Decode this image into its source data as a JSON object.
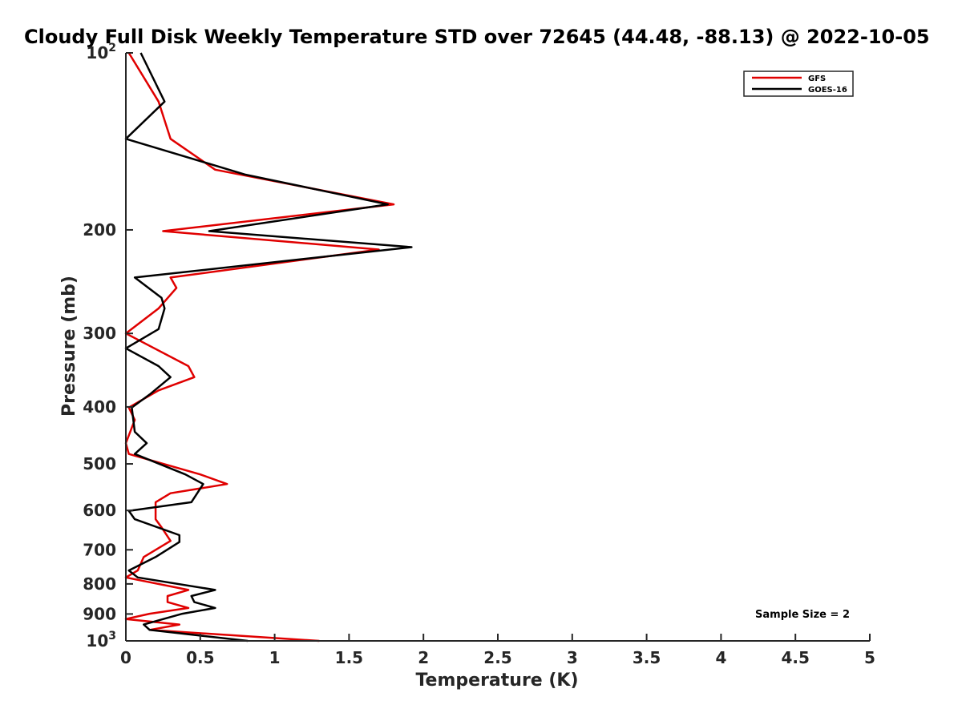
{
  "chart_data": {
    "type": "line",
    "title": "Cloudy Full Disk Weekly Temperature STD over 72645 (44.48, -88.13) @ 2022-10-05",
    "xlabel": "Temperature (K)",
    "ylabel": "Pressure (mb)",
    "xlim": [
      0,
      5
    ],
    "ylim": [
      100,
      1000
    ],
    "y_scale": "log",
    "y_reversed": true,
    "x_ticks": [
      "0",
      "0.5",
      "1",
      "1.5",
      "2",
      "2.5",
      "3",
      "3.5",
      "4",
      "4.5",
      "5"
    ],
    "y_ticks": [
      {
        "value": 100,
        "base": "10",
        "exp": "2"
      },
      {
        "value": 200,
        "label": "200"
      },
      {
        "value": 300,
        "label": "300"
      },
      {
        "value": 400,
        "label": "400"
      },
      {
        "value": 500,
        "label": "500"
      },
      {
        "value": 600,
        "label": "600"
      },
      {
        "value": 700,
        "label": "700"
      },
      {
        "value": 800,
        "label": "800"
      },
      {
        "value": 900,
        "label": "900"
      },
      {
        "value": 1000,
        "base": "10",
        "exp": "3"
      }
    ],
    "grid": false,
    "legend_position": "top-right",
    "annotation": "Sample Size = 2",
    "series": [
      {
        "name": "GFS",
        "color": "#e00000",
        "points": [
          [
            0.02,
            100
          ],
          [
            0.22,
            121
          ],
          [
            0.3,
            140
          ],
          [
            0.6,
            158
          ],
          [
            1.8,
            181
          ],
          [
            0.25,
            201
          ],
          [
            1.7,
            216
          ],
          [
            0.3,
            241
          ],
          [
            0.34,
            251
          ],
          [
            0.22,
            272
          ],
          [
            0.0,
            300
          ],
          [
            0.42,
            341
          ],
          [
            0.46,
            356
          ],
          [
            0.22,
            375
          ],
          [
            0.02,
            401
          ],
          [
            0.06,
            421
          ],
          [
            0.0,
            461
          ],
          [
            0.02,
            481
          ],
          [
            0.5,
            521
          ],
          [
            0.68,
            541
          ],
          [
            0.3,
            561
          ],
          [
            0.2,
            581
          ],
          [
            0.2,
            621
          ],
          [
            0.24,
            641
          ],
          [
            0.3,
            676
          ],
          [
            0.12,
            720
          ],
          [
            0.08,
            759
          ],
          [
            0.0,
            780
          ],
          [
            0.42,
            819
          ],
          [
            0.28,
            839
          ],
          [
            0.28,
            859
          ],
          [
            0.42,
            879
          ],
          [
            0.16,
            899
          ],
          [
            0.0,
            918
          ],
          [
            0.36,
            938
          ],
          [
            0.16,
            958
          ],
          [
            1.3,
            1000
          ]
        ]
      },
      {
        "name": "GOES-16",
        "color": "#000000",
        "points": [
          [
            0.1,
            100
          ],
          [
            0.26,
            121
          ],
          [
            0.0,
            140
          ],
          [
            0.8,
            161
          ],
          [
            1.76,
            181
          ],
          [
            0.56,
            201
          ],
          [
            1.92,
            214
          ],
          [
            0.06,
            241
          ],
          [
            0.24,
            261
          ],
          [
            0.26,
            272
          ],
          [
            0.22,
            295
          ],
          [
            0.0,
            318
          ],
          [
            0.22,
            341
          ],
          [
            0.3,
            356
          ],
          [
            0.16,
            381
          ],
          [
            0.04,
            401
          ],
          [
            0.06,
            441
          ],
          [
            0.14,
            461
          ],
          [
            0.06,
            481
          ],
          [
            0.4,
            521
          ],
          [
            0.52,
            541
          ],
          [
            0.44,
            581
          ],
          [
            0.02,
            601
          ],
          [
            0.06,
            621
          ],
          [
            0.36,
            661
          ],
          [
            0.36,
            679
          ],
          [
            0.2,
            720
          ],
          [
            0.02,
            759
          ],
          [
            0.08,
            780
          ],
          [
            0.6,
            819
          ],
          [
            0.44,
            839
          ],
          [
            0.46,
            859
          ],
          [
            0.6,
            879
          ],
          [
            0.38,
            899
          ],
          [
            0.12,
            938
          ],
          [
            0.16,
            958
          ],
          [
            0.82,
            1000
          ]
        ]
      }
    ]
  }
}
